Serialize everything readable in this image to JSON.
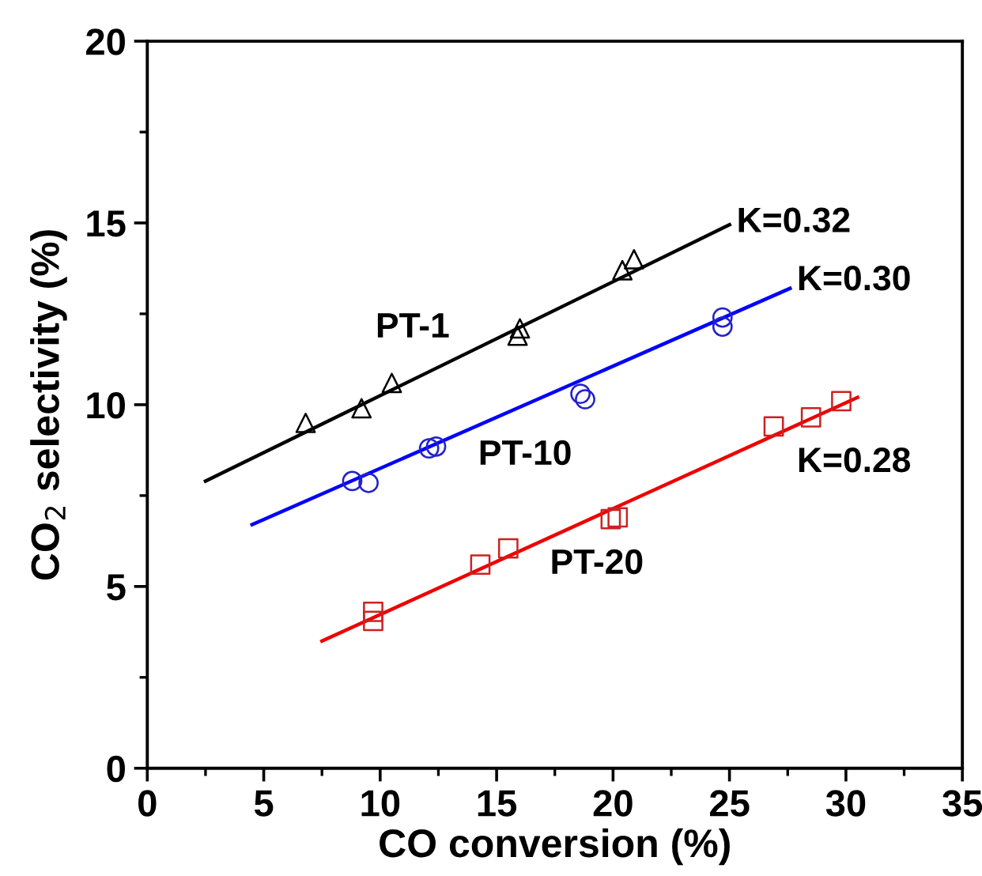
{
  "chart_data": {
    "type": "scatter",
    "xlabel": "CO conversion (%)",
    "ylabel": "CO$_{2}$ selectivity (%)",
    "xlim": [
      0,
      35
    ],
    "ylim": [
      0,
      20
    ],
    "xticks": [
      0,
      5,
      10,
      15,
      20,
      25,
      30,
      35
    ],
    "yticks": [
      0,
      5,
      10,
      15,
      20
    ],
    "grid": false,
    "legend": false,
    "series": [
      {
        "marker": "triangle",
        "color": "#000000",
        "x": [
          6.8,
          9.2,
          10.5,
          15.9,
          16.0,
          20.4,
          20.9
        ],
        "values": [
          9.5,
          9.9,
          10.6,
          11.9,
          12.1,
          13.7,
          14.0
        ]
      },
      {
        "marker": "circle",
        "color": "#2222cc",
        "x": [
          8.8,
          9.5,
          12.1,
          12.4,
          18.6,
          18.8,
          24.7,
          24.7
        ],
        "values": [
          7.9,
          7.85,
          8.8,
          8.85,
          10.3,
          10.15,
          12.4,
          12.15
        ]
      },
      {
        "marker": "square",
        "color": "#cc2222",
        "x": [
          9.7,
          9.7,
          14.3,
          15.5,
          19.9,
          20.2,
          26.9,
          28.5,
          29.8
        ],
        "values": [
          4.3,
          4.05,
          5.6,
          6.05,
          6.85,
          6.9,
          9.4,
          9.65,
          10.1
        ]
      },
      {
        "type": "line",
        "marker": "none",
        "line_style": "solid",
        "color": "#000000",
        "x": [
          2.5,
          25.0
        ],
        "values": [
          7.9,
          14.95
        ]
      },
      {
        "type": "line",
        "marker": "none",
        "line_style": "solid",
        "color": "#0000ff",
        "x": [
          4.5,
          27.6
        ],
        "values": [
          6.7,
          13.2
        ]
      },
      {
        "type": "line",
        "marker": "none",
        "line_style": "solid",
        "color": "#ee0000",
        "x": [
          7.5,
          30.5
        ],
        "values": [
          3.5,
          10.2
        ]
      }
    ],
    "annotations": [
      "K=0.32",
      "K=0.30",
      "K=0.28",
      "PT-1",
      "PT-10",
      "PT-20"
    ]
  }
}
